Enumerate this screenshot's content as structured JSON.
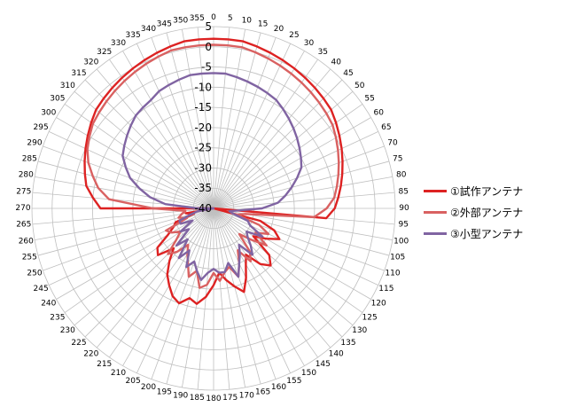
{
  "chart_data": {
    "type": "polar-line",
    "r_axis": {
      "min": -40,
      "max": 5,
      "ticks": [
        5,
        0,
        -5,
        -10,
        -15,
        -20,
        -25,
        -30,
        -35,
        -40
      ],
      "tick_labels": [
        "5",
        "0",
        "-5",
        "-10",
        "-15",
        "-20",
        "-25",
        "-30",
        "-35",
        "-40"
      ]
    },
    "angle_axis": {
      "step_deg": 5,
      "direction": "clockwise",
      "zero": "top",
      "labels": [
        "0",
        "5",
        "10",
        "15",
        "20",
        "25",
        "30",
        "35",
        "40",
        "45",
        "50",
        "55",
        "60",
        "65",
        "70",
        "75",
        "80",
        "85",
        "90",
        "95",
        "100",
        "105",
        "110",
        "115",
        "120",
        "125",
        "130",
        "135",
        "140",
        "145",
        "150",
        "155",
        "160",
        "165",
        "170",
        "175",
        "180",
        "185",
        "190",
        "195",
        "200",
        "205",
        "210",
        "215",
        "220",
        "225",
        "230",
        "235",
        "240",
        "245",
        "250",
        "255",
        "260",
        "265",
        "270",
        "275",
        "280",
        "285",
        "290",
        "295",
        "300",
        "305",
        "310",
        "315",
        "320",
        "325",
        "330",
        "335",
        "340",
        "345",
        "350",
        "355"
      ]
    },
    "grid": true,
    "legend_position": "right",
    "series": [
      {
        "name": "①試作アンテナ",
        "color": "#dd2222",
        "values": [
          2,
          2,
          2,
          1.5,
          1,
          0.5,
          0,
          -0.5,
          -1,
          -1.5,
          -2,
          -3,
          -4,
          -5,
          -6,
          -7,
          -8,
          -9,
          -10,
          -12,
          -40,
          -28,
          -24,
          -22,
          -25,
          -28,
          -22,
          -20,
          -22,
          -26,
          -24,
          -21,
          -18,
          -20,
          -22,
          -24,
          -21,
          -18,
          -16,
          -17,
          -15,
          -16,
          -18,
          -20,
          -23,
          -26,
          -22,
          -23,
          -27,
          -29,
          -30,
          -35,
          -33,
          -40,
          -12,
          -10,
          -8,
          -7,
          -6,
          -5,
          -4,
          -3,
          -2,
          -1.5,
          -1,
          -0.5,
          0,
          0.5,
          1,
          1.5,
          2,
          2
        ]
      },
      {
        "name": "②外部アンテナ",
        "color": "#d96161",
        "values": [
          0.5,
          0.5,
          0.5,
          0,
          -0.5,
          -1,
          -1.5,
          -2,
          -2.5,
          -3,
          -3.5,
          -4,
          -5,
          -6,
          -7,
          -8,
          -9,
          -10,
          -12,
          -15,
          -32,
          -34,
          -28,
          -25,
          -28,
          -24,
          -28,
          -31,
          -26,
          -24,
          -28,
          -25,
          -22,
          -25,
          -24,
          -22,
          -24,
          -21,
          -20,
          -24,
          -22,
          -25,
          -27,
          -29,
          -26,
          -24,
          -28,
          -30,
          -28,
          -27,
          -33,
          -31,
          -32,
          -33,
          -25,
          -14,
          -11,
          -9,
          -7,
          -5.5,
          -4.5,
          -3.5,
          -3,
          -2.5,
          -2,
          -1.5,
          -1,
          -0.5,
          0,
          0.5,
          0.5,
          0.5
        ]
      },
      {
        "name": "③小型アンテナ",
        "color": "#8064a2",
        "values": [
          -6.5,
          -6.5,
          -7,
          -7.5,
          -8,
          -8.5,
          -9,
          -10,
          -11,
          -12,
          -13,
          -14,
          -15,
          -16,
          -18,
          -20,
          -22,
          -24,
          -28,
          -34,
          -36,
          -35,
          -31,
          -30,
          -26,
          -30,
          -29,
          -27,
          -25,
          -29,
          -27,
          -25,
          -22,
          -26,
          -24,
          -24,
          -25,
          -24,
          -22,
          -24,
          -26,
          -24,
          -28,
          -25,
          -30,
          -27,
          -32,
          -30,
          -34,
          -31,
          -31,
          -34,
          -36,
          -40,
          -36,
          -28,
          -24,
          -21,
          -18,
          -16,
          -14,
          -13,
          -12,
          -11,
          -10,
          -9.5,
          -9,
          -8,
          -7.5,
          -7,
          -6.5,
          -6.5
        ]
      }
    ]
  }
}
